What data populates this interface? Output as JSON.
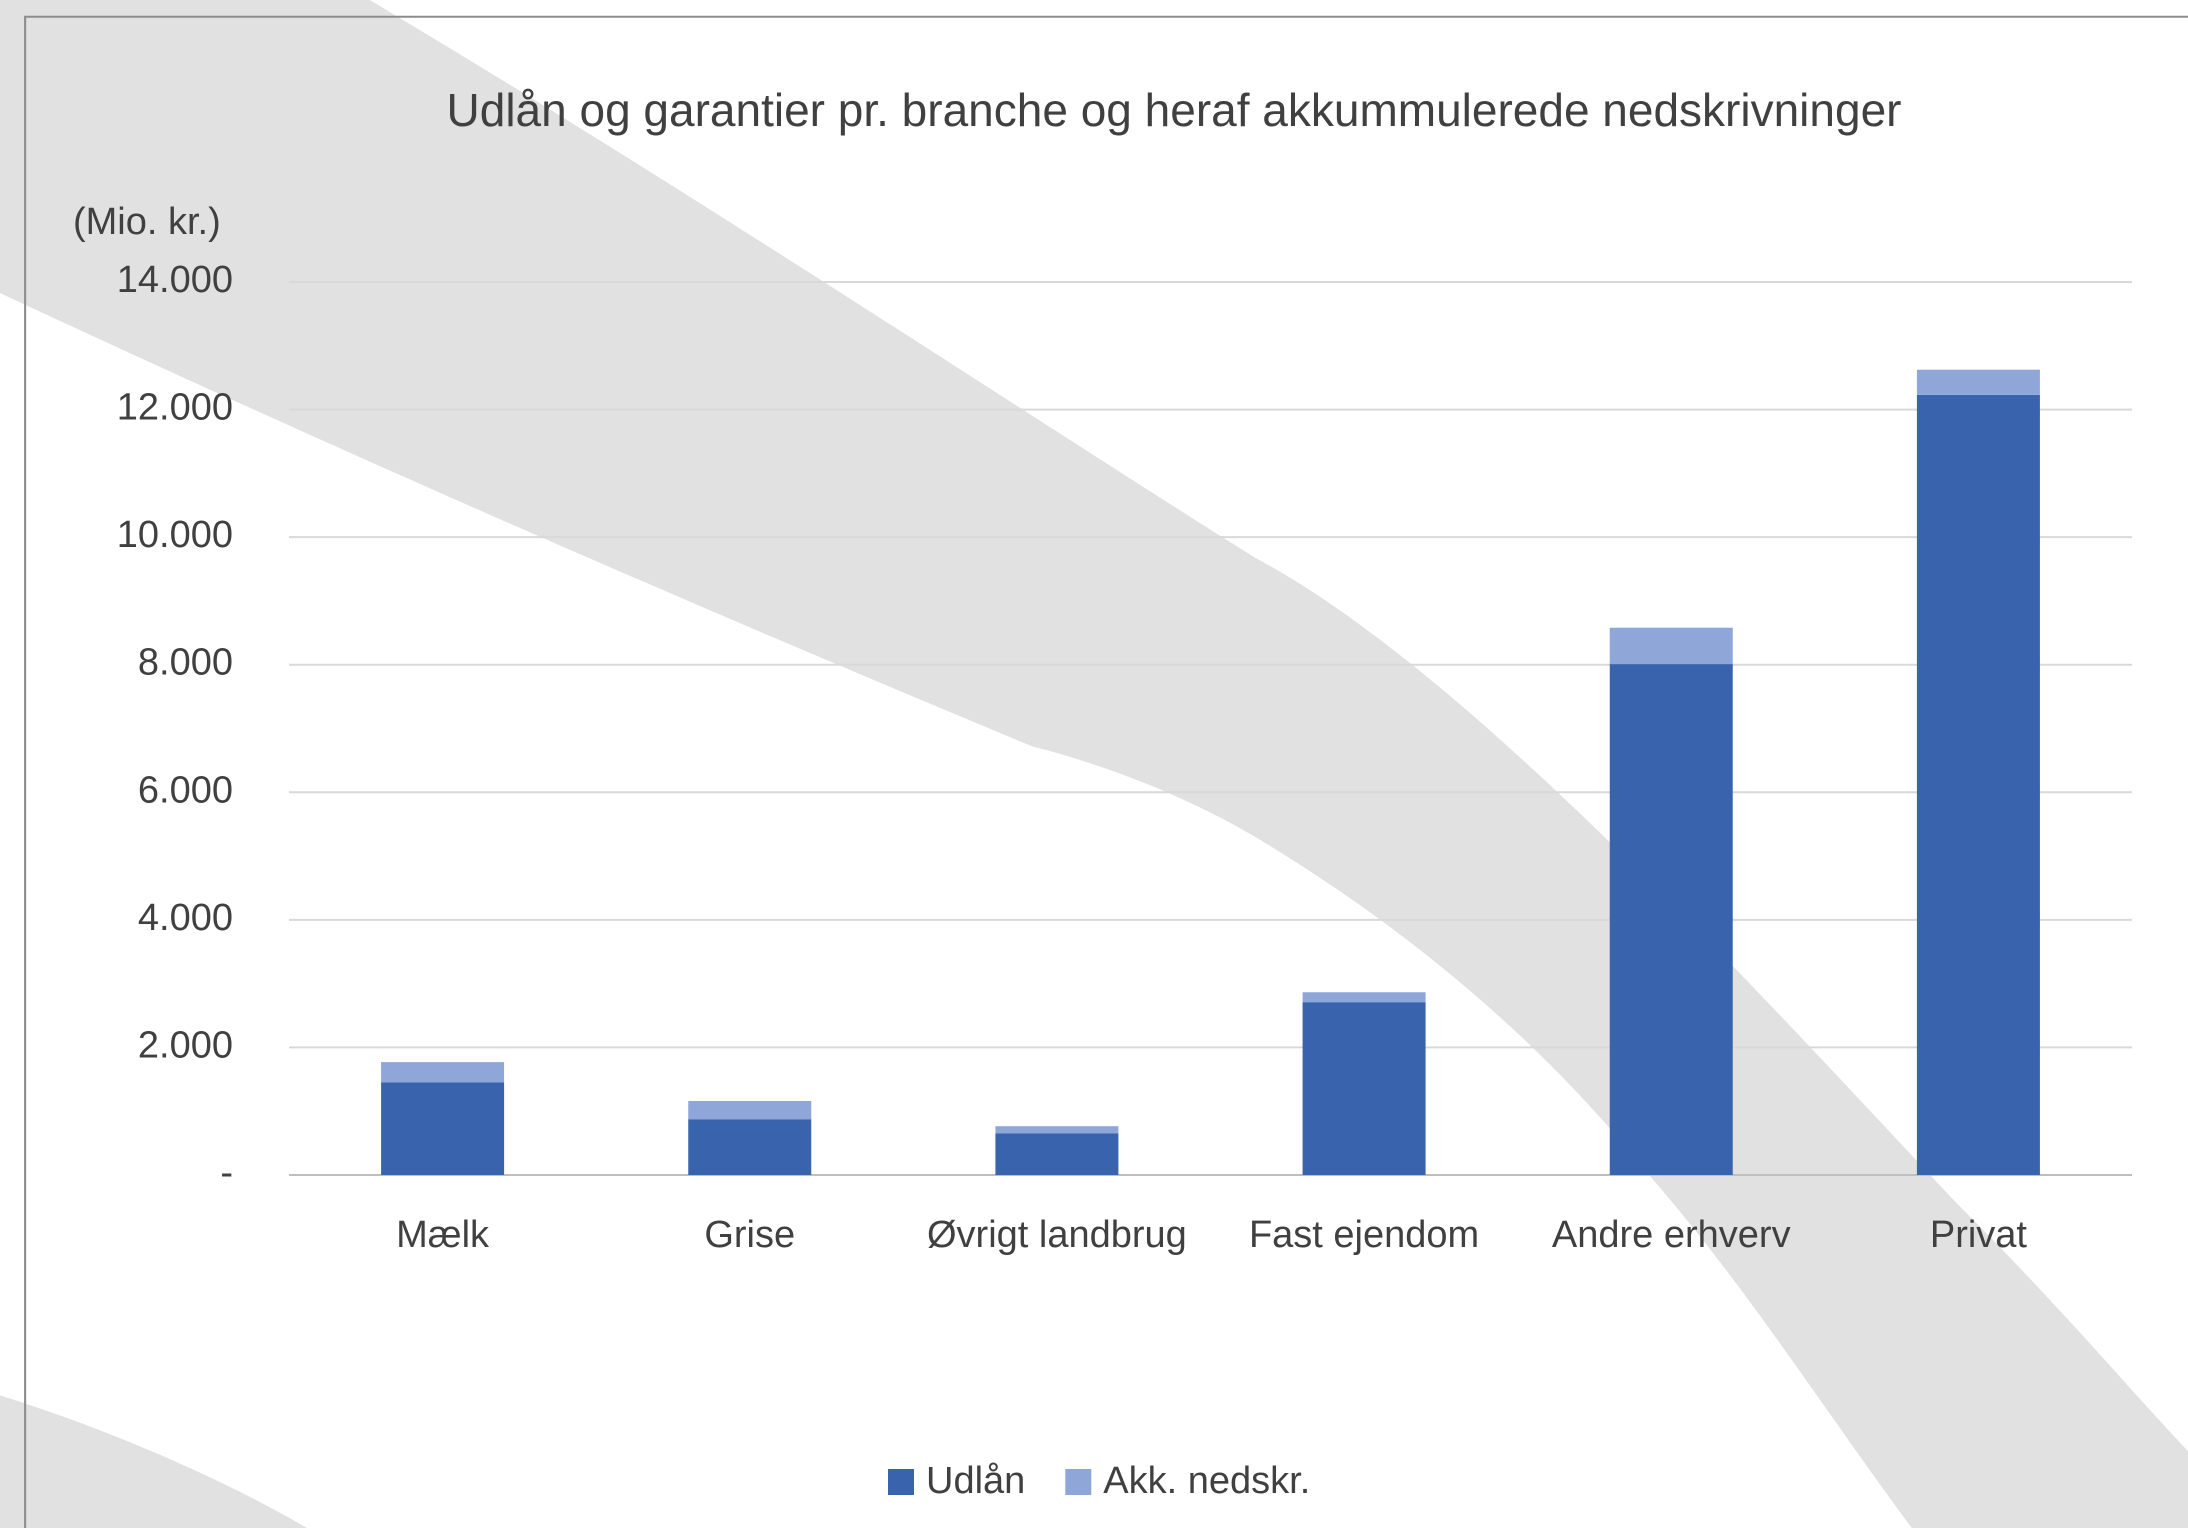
{
  "chart_data": {
    "type": "stacked_bar",
    "title": "Udlån og garantier pr. branche og heraf akkummulerede nedskrivninger",
    "y_label": "(Mio. kr.)",
    "categories": [
      "Mælk",
      "Grise",
      "Øvrigt landbrug",
      "Fast ejendom",
      "Andre erhverv",
      "Privat"
    ],
    "series": [
      {
        "name": "Udlån",
        "color": "#3a63ad",
        "values": [
          1450,
          875,
          655,
          2710,
          8010,
          12230
        ]
      },
      {
        "name": "Akk. nedskr.",
        "color": "#8fa6d8",
        "values": [
          320,
          285,
          110,
          155,
          570,
          395
        ]
      }
    ],
    "ylim": [
      0,
      14000
    ],
    "yticks": [
      {
        "value": 0,
        "label": "-"
      },
      {
        "value": 2000,
        "label": "2.000"
      },
      {
        "value": 4000,
        "label": "4.000"
      },
      {
        "value": 6000,
        "label": "6.000"
      },
      {
        "value": 8000,
        "label": "8.000"
      },
      {
        "value": 10000,
        "label": "10.000"
      },
      {
        "value": 12000,
        "label": "12.000"
      },
      {
        "value": 14000,
        "label": "14.000"
      }
    ],
    "grid": true,
    "legend": "bottom"
  }
}
